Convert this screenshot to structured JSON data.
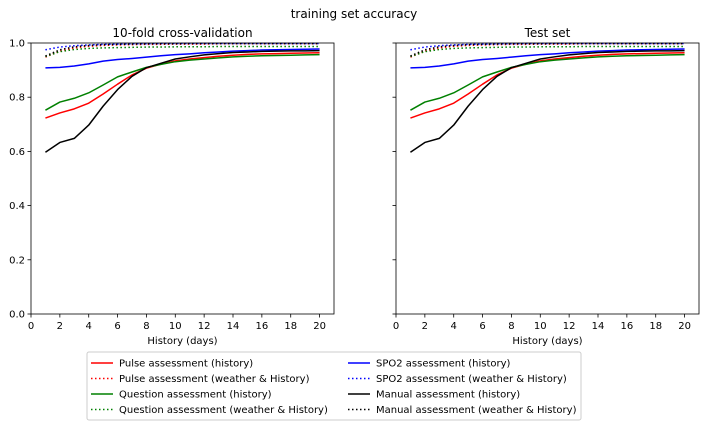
{
  "figure": {
    "suptitle": "training set accuracy"
  },
  "chart_data": [
    {
      "type": "line",
      "title": "10-fold cross-validation",
      "xlabel": "History (days)",
      "ylabel": "",
      "xlim": [
        0,
        21
      ],
      "ylim": [
        0,
        1.0
      ],
      "xticks": [
        0,
        2,
        4,
        6,
        8,
        10,
        12,
        14,
        16,
        18,
        20
      ],
      "yticks": [
        0.0,
        0.2,
        0.4,
        0.6,
        0.8,
        1.0
      ],
      "ytick_labels": [
        "0.0",
        "0.2",
        "0.4",
        "0.6",
        "0.8",
        "1.0"
      ],
      "grid": false,
      "x": [
        1,
        2,
        3,
        4,
        5,
        6,
        7,
        8,
        9,
        10,
        11,
        12,
        13,
        14,
        15,
        16,
        17,
        18,
        19,
        20
      ],
      "series": [
        {
          "name": "Pulse assessment (history)",
          "color": "#ff0000",
          "style": "solid",
          "values": [
            0.723,
            0.742,
            0.757,
            0.778,
            0.812,
            0.848,
            0.882,
            0.907,
            0.922,
            0.934,
            0.941,
            0.946,
            0.951,
            0.955,
            0.958,
            0.96,
            0.961,
            0.962,
            0.963,
            0.964
          ]
        },
        {
          "name": "Pulse assessment (weather & History)",
          "color": "#ff0000",
          "style": "dotted",
          "values": [
            0.948,
            0.97,
            0.982,
            0.988,
            0.991,
            0.993,
            0.994,
            0.995,
            0.995,
            0.996,
            0.996,
            0.996,
            0.997,
            0.997,
            0.997,
            0.997,
            0.997,
            0.997,
            0.997,
            0.997
          ]
        },
        {
          "name": "Question assessment (history)",
          "color": "#008000",
          "style": "solid",
          "values": [
            0.752,
            0.782,
            0.796,
            0.816,
            0.845,
            0.875,
            0.893,
            0.91,
            0.921,
            0.931,
            0.937,
            0.941,
            0.945,
            0.949,
            0.951,
            0.953,
            0.954,
            0.955,
            0.956,
            0.957
          ]
        },
        {
          "name": "Question assessment (weather & History)",
          "color": "#008000",
          "style": "dotted",
          "values": [
            0.95,
            0.968,
            0.976,
            0.98,
            0.982,
            0.983,
            0.984,
            0.985,
            0.985,
            0.986,
            0.986,
            0.986,
            0.987,
            0.987,
            0.987,
            0.987,
            0.987,
            0.987,
            0.987,
            0.987
          ]
        },
        {
          "name": "SPO2 assessment (history)",
          "color": "#0000ff",
          "style": "solid",
          "values": [
            0.908,
            0.91,
            0.915,
            0.923,
            0.933,
            0.939,
            0.943,
            0.948,
            0.953,
            0.957,
            0.96,
            0.964,
            0.967,
            0.97,
            0.972,
            0.974,
            0.975,
            0.976,
            0.977,
            0.978
          ]
        },
        {
          "name": "SPO2 assessment (weather & History)",
          "color": "#0000ff",
          "style": "dotted",
          "values": [
            0.975,
            0.985,
            0.99,
            0.993,
            0.995,
            0.996,
            0.997,
            0.997,
            0.998,
            0.998,
            0.998,
            0.998,
            0.998,
            0.998,
            0.998,
            0.998,
            0.998,
            0.998,
            0.998,
            0.998
          ]
        },
        {
          "name": "Manual assessment (history)",
          "color": "#000000",
          "style": "solid",
          "values": [
            0.597,
            0.633,
            0.648,
            0.697,
            0.767,
            0.828,
            0.877,
            0.909,
            0.925,
            0.941,
            0.949,
            0.956,
            0.961,
            0.965,
            0.967,
            0.969,
            0.97,
            0.971,
            0.971,
            0.972
          ]
        },
        {
          "name": "Manual assessment (weather & History)",
          "color": "#000000",
          "style": "dotted",
          "values": [
            0.952,
            0.975,
            0.986,
            0.991,
            0.994,
            0.995,
            0.996,
            0.997,
            0.997,
            0.997,
            0.998,
            0.998,
            0.998,
            0.998,
            0.998,
            0.998,
            0.998,
            0.998,
            0.998,
            0.998
          ]
        }
      ]
    },
    {
      "type": "line",
      "title": "Test set",
      "xlabel": "History (days)",
      "ylabel": "",
      "xlim": [
        0,
        21
      ],
      "ylim": [
        0,
        1.0
      ],
      "xticks": [
        0,
        2,
        4,
        6,
        8,
        10,
        12,
        14,
        16,
        18,
        20
      ],
      "yticks": [
        0.0,
        0.2,
        0.4,
        0.6,
        0.8,
        1.0
      ],
      "ytick_labels": [],
      "sharey": true,
      "grid": false,
      "x": [
        1,
        2,
        3,
        4,
        5,
        6,
        7,
        8,
        9,
        10,
        11,
        12,
        13,
        14,
        15,
        16,
        17,
        18,
        19,
        20
      ],
      "series": [
        {
          "name": "Pulse assessment (history)",
          "color": "#ff0000",
          "style": "solid",
          "values": [
            0.723,
            0.742,
            0.757,
            0.778,
            0.812,
            0.848,
            0.882,
            0.907,
            0.922,
            0.934,
            0.941,
            0.946,
            0.951,
            0.955,
            0.958,
            0.96,
            0.961,
            0.962,
            0.963,
            0.964
          ]
        },
        {
          "name": "Pulse assessment (weather & History)",
          "color": "#ff0000",
          "style": "dotted",
          "values": [
            0.948,
            0.97,
            0.982,
            0.988,
            0.991,
            0.993,
            0.994,
            0.995,
            0.995,
            0.996,
            0.996,
            0.996,
            0.997,
            0.997,
            0.997,
            0.997,
            0.997,
            0.997,
            0.997,
            0.997
          ]
        },
        {
          "name": "Question assessment (history)",
          "color": "#008000",
          "style": "solid",
          "values": [
            0.752,
            0.782,
            0.796,
            0.816,
            0.845,
            0.875,
            0.893,
            0.91,
            0.921,
            0.931,
            0.937,
            0.941,
            0.945,
            0.949,
            0.951,
            0.953,
            0.954,
            0.955,
            0.956,
            0.957
          ]
        },
        {
          "name": "Question assessment (weather & History)",
          "color": "#008000",
          "style": "dotted",
          "values": [
            0.95,
            0.968,
            0.976,
            0.98,
            0.982,
            0.983,
            0.984,
            0.985,
            0.985,
            0.986,
            0.986,
            0.986,
            0.987,
            0.987,
            0.987,
            0.987,
            0.987,
            0.987,
            0.987,
            0.987
          ]
        },
        {
          "name": "SPO2 assessment (history)",
          "color": "#0000ff",
          "style": "solid",
          "values": [
            0.908,
            0.91,
            0.915,
            0.923,
            0.933,
            0.939,
            0.943,
            0.948,
            0.953,
            0.957,
            0.96,
            0.964,
            0.967,
            0.97,
            0.972,
            0.974,
            0.975,
            0.976,
            0.977,
            0.978
          ]
        },
        {
          "name": "SPO2 assessment (weather & History)",
          "color": "#0000ff",
          "style": "dotted",
          "values": [
            0.975,
            0.985,
            0.99,
            0.993,
            0.995,
            0.996,
            0.997,
            0.997,
            0.998,
            0.998,
            0.998,
            0.998,
            0.998,
            0.998,
            0.998,
            0.998,
            0.998,
            0.998,
            0.998,
            0.998
          ]
        },
        {
          "name": "Manual assessment (history)",
          "color": "#000000",
          "style": "solid",
          "values": [
            0.597,
            0.633,
            0.648,
            0.697,
            0.767,
            0.828,
            0.877,
            0.909,
            0.925,
            0.941,
            0.949,
            0.956,
            0.961,
            0.965,
            0.967,
            0.969,
            0.97,
            0.971,
            0.971,
            0.972
          ]
        },
        {
          "name": "Manual assessment (weather & History)",
          "color": "#000000",
          "style": "dotted",
          "values": [
            0.952,
            0.975,
            0.986,
            0.991,
            0.994,
            0.995,
            0.996,
            0.997,
            0.997,
            0.997,
            0.998,
            0.998,
            0.998,
            0.998,
            0.998,
            0.998,
            0.998,
            0.998,
            0.998,
            0.998
          ]
        }
      ]
    }
  ],
  "legend": {
    "placement": "bottom-center",
    "columns": 2,
    "entries": [
      {
        "label": "Pulse assessment (history)",
        "color": "#ff0000",
        "style": "solid"
      },
      {
        "label": "Pulse assessment (weather & History)",
        "color": "#ff0000",
        "style": "dotted"
      },
      {
        "label": "Question assessment (history)",
        "color": "#008000",
        "style": "solid"
      },
      {
        "label": "Question assessment (weather & History)",
        "color": "#008000",
        "style": "dotted"
      },
      {
        "label": "SPO2 assessment (history)",
        "color": "#0000ff",
        "style": "solid"
      },
      {
        "label": "SPO2 assessment (weather & History)",
        "color": "#0000ff",
        "style": "dotted"
      },
      {
        "label": "Manual assessment (history)",
        "color": "#000000",
        "style": "solid"
      },
      {
        "label": "Manual assessment (weather & History)",
        "color": "#000000",
        "style": "dotted"
      }
    ]
  }
}
